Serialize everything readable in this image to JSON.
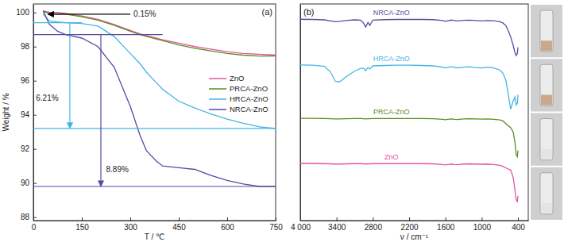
{
  "chart_data": [
    {
      "type": "line",
      "title": "(a)",
      "x_label": "T / ℃",
      "y_label": "Weight / %",
      "x": [
        30,
        50,
        75,
        100,
        150,
        200,
        250,
        300,
        330,
        350,
        380,
        400,
        450,
        500,
        550,
        600,
        650,
        700,
        750
      ],
      "series": [
        {
          "name": "ZnO",
          "color": "#e2559c",
          "values": [
            100.1,
            100.0,
            100.0,
            99.95,
            99.8,
            99.6,
            99.3,
            98.95,
            98.75,
            98.65,
            98.5,
            98.4,
            98.2,
            98.0,
            97.85,
            97.7,
            97.6,
            97.55,
            97.5
          ]
        },
        {
          "name": "PRCA-ZnO",
          "color": "#5c8c1e",
          "values": [
            100.05,
            99.95,
            99.9,
            99.9,
            99.75,
            99.55,
            99.25,
            98.9,
            98.7,
            98.6,
            98.45,
            98.35,
            98.1,
            97.9,
            97.75,
            97.6,
            97.5,
            97.45,
            97.45
          ]
        },
        {
          "name": "HRCA-ZnO",
          "color": "#44b4e4",
          "values": [
            99.9,
            99.5,
            99.45,
            99.4,
            99.35,
            99.2,
            98.6,
            97.6,
            97.0,
            96.5,
            95.9,
            95.5,
            94.8,
            94.4,
            94.05,
            93.75,
            93.5,
            93.3,
            93.2
          ]
        },
        {
          "name": "NRCA-ZnO",
          "color": "#5b4aa0",
          "values": [
            100.1,
            99.3,
            98.9,
            98.7,
            98.5,
            98.0,
            96.8,
            94.5,
            92.8,
            91.9,
            91.3,
            91.0,
            90.9,
            90.8,
            90.45,
            90.15,
            89.95,
            89.8,
            89.8
          ]
        }
      ],
      "xlim": [
        0,
        750
      ],
      "xticks": [
        0,
        150,
        300,
        450,
        600,
        750
      ],
      "ylim": [
        87.8,
        100.5
      ],
      "yticks": [
        88,
        90,
        92,
        94,
        96,
        98,
        100
      ],
      "legend": "right",
      "annotations": [
        {
          "text": "0.15%",
          "x": 310,
          "y": 99.9,
          "color": "#000000",
          "arrow": {
            "x": [
              300,
              45
            ],
            "y": [
              99.9,
              99.9
            ]
          }
        },
        {
          "text": "6.21%",
          "x": 8,
          "y": 95.0,
          "color": "#44b4e4",
          "arrow": {
            "x": [
              113,
              113
            ],
            "y": [
              99.4,
              93.2
            ]
          },
          "lines": [
            {
              "x": [
                0,
                150
              ],
              "y": [
                99.4,
                99.4
              ]
            },
            {
              "x": [
                0,
                750
              ],
              "y": [
                93.2,
                93.2
              ]
            }
          ]
        },
        {
          "text": "8.89%",
          "x": 225,
          "y": 90.8,
          "color": "#5b4aa0",
          "arrow": {
            "x": [
              209,
              209
            ],
            "y": [
              98.7,
              89.8
            ]
          },
          "lines": [
            {
              "x": [
                0,
                400
              ],
              "y": [
                98.7,
                98.7
              ]
            },
            {
              "x": [
                0,
                750
              ],
              "y": [
                89.8,
                89.8
              ]
            }
          ]
        }
      ]
    },
    {
      "type": "line",
      "title": "(b)",
      "x_label": "ν / cm⁻¹",
      "x": [
        4000,
        3800,
        3600,
        3500,
        3420,
        3350,
        3250,
        3100,
        3000,
        2950,
        2920,
        2880,
        2850,
        2800,
        2600,
        2400,
        2200,
        2000,
        1800,
        1650,
        1600,
        1560,
        1500,
        1450,
        1400,
        1300,
        1200,
        1100,
        1000,
        900,
        800,
        700,
        650,
        600,
        560,
        520,
        480,
        450,
        430,
        410,
        400
      ],
      "series": [
        {
          "name": "NRCA-ZnO",
          "color": "#5b4aa0",
          "values": [
            97.6,
            97.5,
            97.3,
            96.8,
            96.4,
            96.6,
            97.0,
            97.3,
            97.2,
            95.5,
            93.8,
            96.0,
            94.6,
            97.2,
            97.4,
            97.5,
            97.5,
            97.5,
            97.4,
            97.0,
            96.6,
            96.9,
            97.2,
            97.0,
            96.8,
            97.1,
            97.2,
            97.0,
            96.8,
            97.0,
            96.9,
            96.4,
            95.8,
            94.5,
            92.0,
            89.0,
            85.0,
            81.5,
            80.0,
            81.0,
            84.0
          ]
        },
        {
          "name": "HRCA-ZnO",
          "color": "#44b4e4",
          "values": [
            75.4,
            75.3,
            74.8,
            72.0,
            67.5,
            67.2,
            69.5,
            72.5,
            73.8,
            73.8,
            72.6,
            74.2,
            73.5,
            75.0,
            75.2,
            75.3,
            75.3,
            75.2,
            75.0,
            74.4,
            74.0,
            74.3,
            74.6,
            74.3,
            74.0,
            74.4,
            74.6,
            74.2,
            74.0,
            74.4,
            74.0,
            73.0,
            71.5,
            68.0,
            61.0,
            54.0,
            58.0,
            60.0,
            56.0,
            57.0,
            61.0
          ]
        },
        {
          "name": "PRCA-ZnO",
          "color": "#5c8c1e",
          "values": [
            49.6,
            49.6,
            49.5,
            49.4,
            49.3,
            49.3,
            49.4,
            49.5,
            49.5,
            49.4,
            49.3,
            49.4,
            49.4,
            49.5,
            49.5,
            49.5,
            49.5,
            49.5,
            49.4,
            49.1,
            48.9,
            49.1,
            49.3,
            49.1,
            49.0,
            49.3,
            49.4,
            49.3,
            49.2,
            49.3,
            49.1,
            48.8,
            48.3,
            47.0,
            46.0,
            45.0,
            43.0,
            38.0,
            32.0,
            31.0,
            34.0
          ]
        },
        {
          "name": "ZnO",
          "color": "#e2559c",
          "values": [
            27.7,
            27.7,
            27.6,
            27.5,
            27.4,
            27.4,
            27.5,
            27.6,
            27.6,
            27.5,
            27.4,
            27.5,
            27.5,
            27.6,
            27.6,
            27.6,
            27.6,
            27.6,
            27.5,
            27.2,
            27.0,
            27.2,
            27.4,
            27.2,
            27.1,
            27.4,
            27.5,
            27.4,
            27.3,
            27.4,
            27.2,
            26.8,
            26.3,
            25.5,
            25.0,
            24.5,
            21.0,
            15.0,
            10.0,
            9.2,
            12.0
          ]
        }
      ],
      "xlim": [
        4000,
        230
      ],
      "xticks": [
        {
          "value": 4000,
          "label": "4 000"
        },
        3400,
        2800,
        2200,
        1600,
        1000,
        400
      ],
      "ylim": [
        0,
        105
      ],
      "yticks": [],
      "tick_labels": "x",
      "legend": "inline"
    }
  ]
}
